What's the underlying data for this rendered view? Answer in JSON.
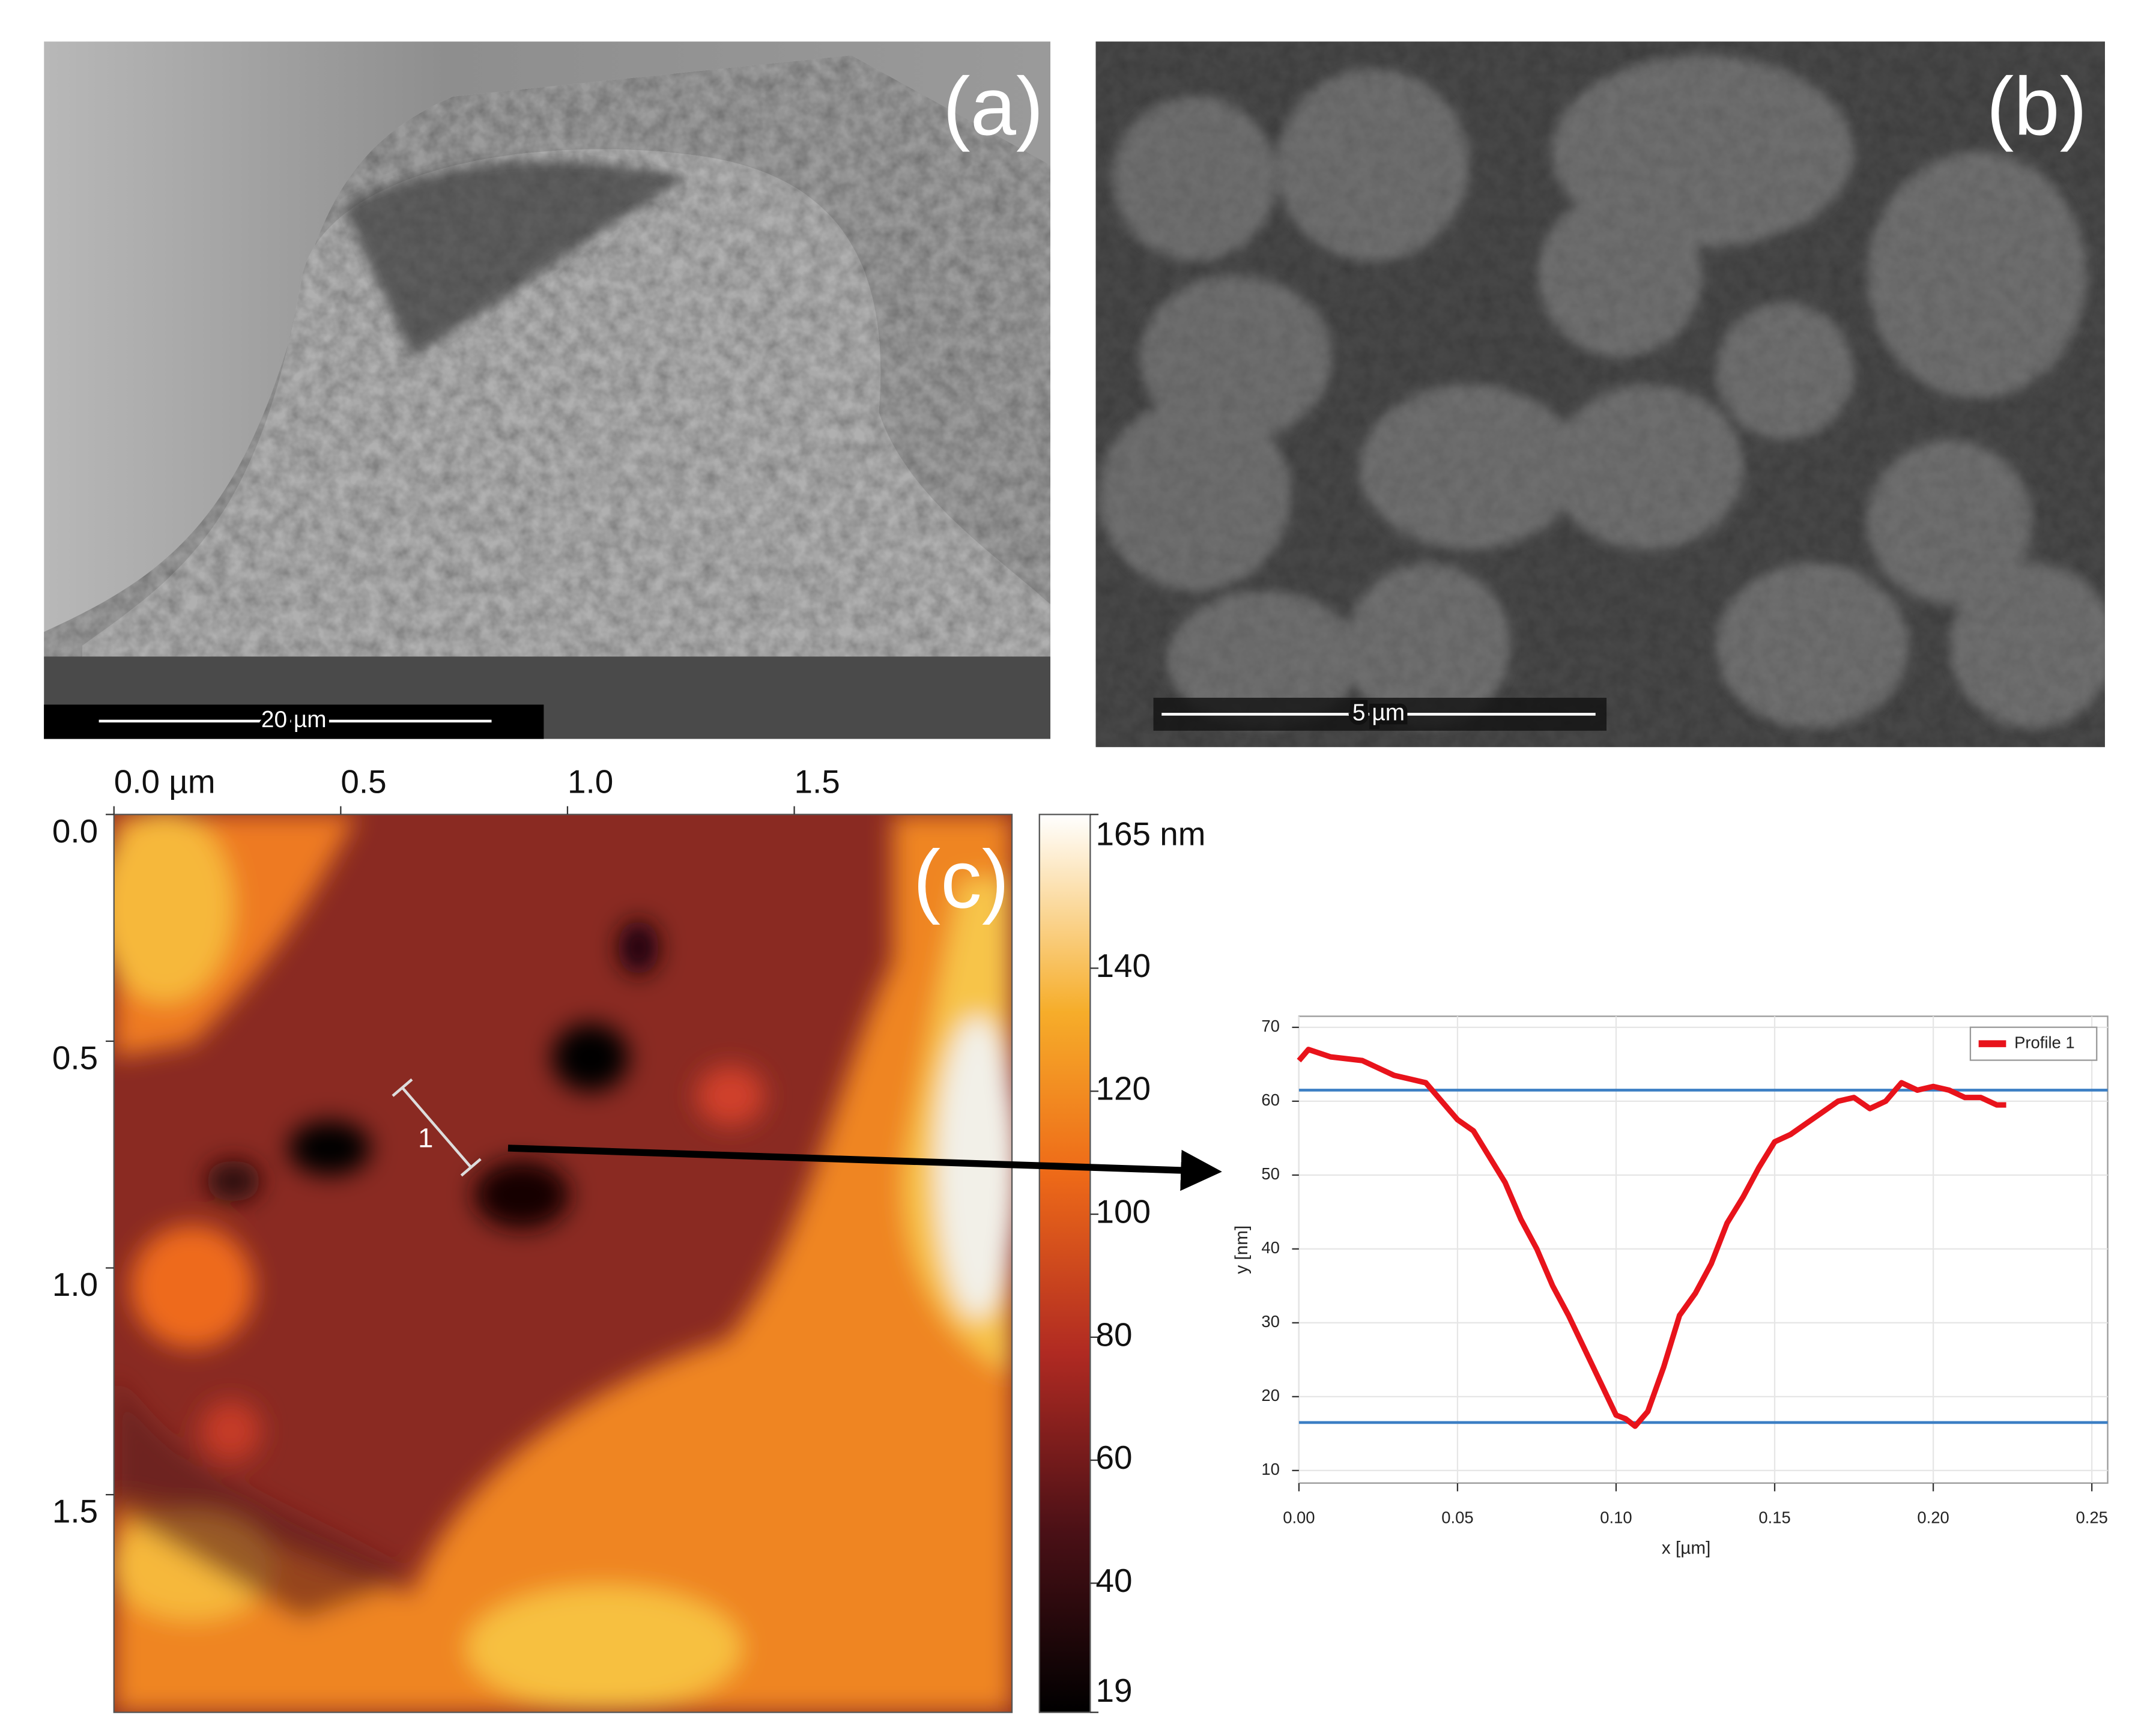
{
  "panels": [
    {
      "label": "(a)",
      "scale_bar": "20 µm"
    },
    {
      "label": "(b)",
      "scale_bar": "5 µm"
    },
    {
      "label": "(c)",
      "profile_marker": "1"
    }
  ],
  "afm_map": {
    "xlim": [
      0,
      1.98
    ],
    "ylim": [
      0,
      1.98
    ],
    "xticks": [
      {
        "value": 0,
        "label": "0.0 µm"
      },
      0.5,
      {
        "value": 1,
        "label": "1.0"
      },
      1.5
    ],
    "yticks": [
      {
        "value": 0,
        "label": "0.0"
      },
      0.5,
      {
        "value": 1,
        "label": "1.0"
      },
      1.5
    ],
    "colorbar_lim": [
      19,
      165
    ],
    "colorbar_ticks": [
      {
        "value": 165,
        "label": "165 nm"
      },
      140,
      120,
      100,
      80,
      60,
      40,
      19
    ]
  },
  "chart_data": {
    "type": "line",
    "x_label": "x [µm]",
    "y_label": "y [nm]",
    "x": [
      0,
      0.003,
      0.01,
      0.02,
      0.03,
      0.035,
      0.04,
      0.045,
      0.05,
      0.055,
      0.06,
      0.065,
      0.07,
      0.075,
      0.08,
      0.085,
      0.09,
      0.095,
      0.1,
      0.103,
      0.106,
      0.11,
      0.115,
      0.12,
      0.125,
      0.13,
      0.135,
      0.14,
      0.145,
      0.15,
      0.155,
      0.16,
      0.165,
      0.17,
      0.175,
      0.18,
      0.185,
      0.19,
      0.195,
      0.2,
      0.205,
      0.21,
      0.215,
      0.22,
      0.223
    ],
    "series": [
      {
        "name": "Profile 1",
        "color": "#e8131b",
        "values": [
          65.5,
          67,
          66,
          65.5,
          63.5,
          63,
          62.5,
          60,
          57.5,
          56,
          52.5,
          49,
          44,
          40,
          35,
          31,
          26.5,
          22,
          17.5,
          17,
          16,
          18,
          24,
          31,
          34,
          38,
          43.5,
          47,
          51,
          54.5,
          55.5,
          57,
          58.5,
          60,
          60.5,
          59,
          60,
          62.5,
          61.5,
          62,
          61.5,
          60.5,
          60.5,
          59.5,
          59.5
        ]
      }
    ],
    "xlim": [
      0,
      0.255
    ],
    "ylim": [
      8.3,
      71.5
    ],
    "xticks": [
      {
        "value": 0,
        "label": "0.00"
      },
      {
        "value": 0.05,
        "label": "0.05"
      },
      {
        "value": 0.1,
        "label": "0.10"
      },
      {
        "value": 0.15,
        "label": "0.15"
      },
      {
        "value": 0.2,
        "label": "0.20"
      },
      {
        "value": 0.25,
        "label": "0.25"
      }
    ],
    "yticks": [
      10,
      20,
      30,
      40,
      50,
      60,
      70
    ],
    "hlines": [
      61.5,
      16.5
    ],
    "hline_color": "#3c7fc4",
    "grid": true,
    "legend": "upper right"
  }
}
